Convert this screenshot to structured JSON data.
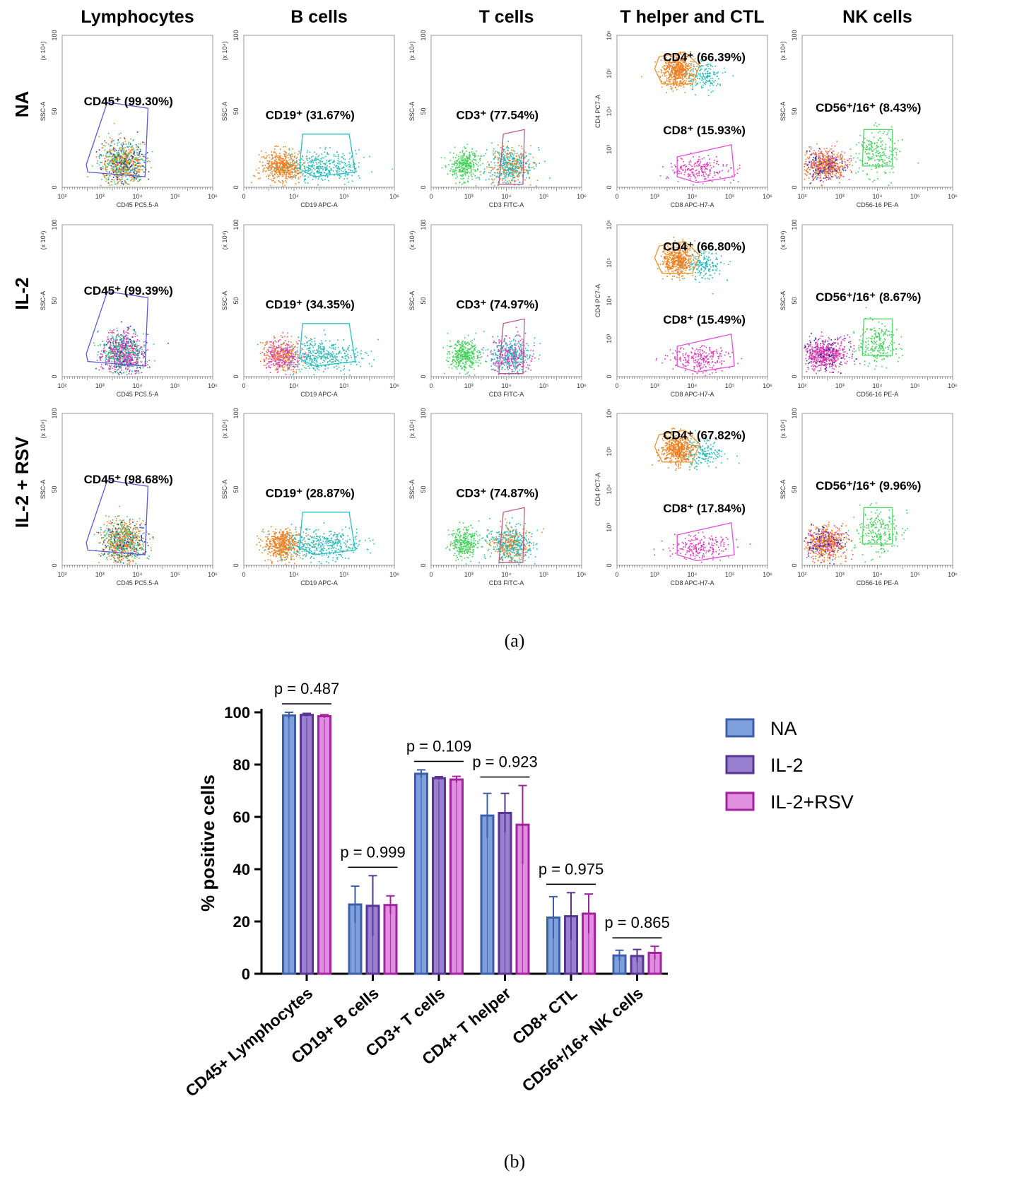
{
  "panel_a": {
    "columns": [
      {
        "title": "Lymphocytes",
        "xaxis": "CD45 PC5.5-A",
        "yaxis": "SSC-A",
        "yunit": "(x 10⁴)",
        "yticks": [
          "0",
          "50",
          "100"
        ],
        "xticks": [
          "10²",
          "10³",
          "10⁴",
          "10⁵",
          "10⁶"
        ],
        "color": "#5b5bd6"
      },
      {
        "title": "B cells",
        "xaxis": "CD19 APC-A",
        "yaxis": "SSC-A",
        "yunit": "(x 10⁴)",
        "yticks": [
          "0",
          "50",
          "100"
        ],
        "xticks": [
          "0",
          "10⁴",
          "10⁵",
          "10⁶"
        ],
        "color": "#2bbfc2"
      },
      {
        "title": "T cells",
        "xaxis": "CD3 FITC-A",
        "yaxis": "SSC-A",
        "yunit": "(x 10⁴)",
        "yticks": [
          "0",
          "50",
          "100"
        ],
        "xticks": [
          "0",
          "10³",
          "10⁴",
          "10⁵",
          "10⁶"
        ],
        "color": "#b55b8e"
      },
      {
        "title": "T helper and CTL",
        "xaxis": "CD8 APC-H7-A",
        "yaxis": "CD4 PC7-A",
        "yunit": "",
        "yticks": [
          "0",
          "10³",
          "10⁴",
          "10⁵",
          "10⁶"
        ],
        "xticks": [
          "0",
          "10³",
          "10⁴",
          "10⁵",
          "10⁶"
        ],
        "color": "#e8942f",
        "color2": "#e04fd8"
      },
      {
        "title": "NK cells",
        "xaxis": "CD56-16 PE-A",
        "yaxis": "SSC-A",
        "yunit": "(x 10⁴)",
        "yticks": [
          "0",
          "50",
          "100"
        ],
        "xticks": [
          "10²",
          "10³",
          "10⁴",
          "10⁵",
          "10⁶"
        ],
        "color": "#52d66a"
      }
    ],
    "rows": [
      {
        "label": "NA",
        "gates": [
          "CD45⁺ (99.30%)",
          "CD19⁺ (31.67%)",
          "CD3⁺ (77.54%)",
          "CD4⁺ (66.39%)",
          "CD56⁺/16⁺ (8.43%)"
        ],
        "cd8": "CD8⁺ (15.93%)"
      },
      {
        "label": "IL-2",
        "gates": [
          "CD45⁺ (99.39%)",
          "CD19⁺ (34.35%)",
          "CD3⁺ (74.97%)",
          "CD4⁺ (66.80%)",
          "CD56⁺/16⁺ (8.67%)"
        ],
        "cd8": "CD8⁺ (15.49%)"
      },
      {
        "label": "IL-2 + RSV",
        "gates": [
          "CD45⁺ (98.68%)",
          "CD19⁺ (28.87%)",
          "CD3⁺ (74.87%)",
          "CD4⁺ (67.82%)",
          "CD56⁺/16⁺ (9.96%)"
        ],
        "cd8": "CD8⁺ (17.84%)"
      }
    ],
    "caption": "(a)"
  },
  "chart_data": {
    "type": "bar",
    "categories": [
      "CD45+ Lymphocytes",
      "CD19+ B cells",
      "CD3+ T cells",
      "CD4+ T helper",
      "CD8+ CTL",
      "CD56+/16+ NK cells"
    ],
    "series": [
      {
        "name": "NA",
        "color": "#3d5fa8",
        "fill": "#7ea0dd",
        "values": [
          98.8,
          26.5,
          76.5,
          60.5,
          21.5,
          7.0
        ],
        "errors": [
          1.2,
          7.0,
          1.5,
          8.5,
          8.0,
          2.0
        ]
      },
      {
        "name": "IL-2",
        "color": "#5a3590",
        "fill": "#9a80d0",
        "values": [
          99.0,
          26.0,
          74.8,
          61.5,
          22.0,
          6.8
        ],
        "errors": [
          0.6,
          11.5,
          0.6,
          7.5,
          9.0,
          2.5
        ]
      },
      {
        "name": "IL-2+RSV",
        "color": "#a3239f",
        "fill": "#e08ee0",
        "values": [
          98.5,
          26.3,
          74.3,
          57.0,
          23.0,
          8.0
        ],
        "errors": [
          0.6,
          3.5,
          1.2,
          15.0,
          7.5,
          2.5
        ]
      }
    ],
    "ylabel": "% positive cells",
    "xlabel": "",
    "ylim": [
      0,
      100
    ],
    "yticks": [
      "0",
      "20",
      "40",
      "60",
      "80",
      "100"
    ],
    "pvalues": [
      "p = 0.487",
      "p = 0.999",
      "p = 0.109",
      "p = 0.923",
      "p = 0.975",
      "p = 0.865"
    ],
    "legend_position": "right",
    "caption": "(b)"
  }
}
